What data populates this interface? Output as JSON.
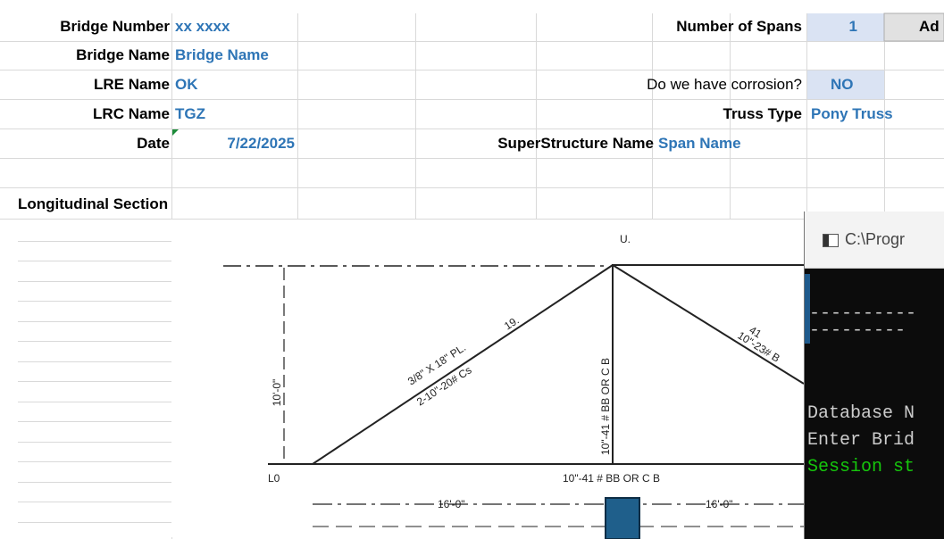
{
  "fields": [
    {
      "label": "Bridge Number",
      "value": "xx xxxx"
    },
    {
      "label": "Bridge Name",
      "value": "Bridge Name"
    },
    {
      "label": "LRE Name",
      "value": "OK"
    },
    {
      "label": "LRC Name",
      "value": "TGZ"
    },
    {
      "label": "Date",
      "value": "7/22/2025"
    },
    {
      "label": "Number of Spans",
      "value": "1"
    },
    {
      "label": "Do we have corrosion?",
      "value": "NO"
    },
    {
      "label": "Truss Type",
      "value": "Pony Truss"
    },
    {
      "label": "SuperStructure Name",
      "value": "Span Name"
    }
  ],
  "button": "Ad",
  "section_title": "Longitudinal Section",
  "drawing": {
    "labels": [
      "U.",
      "L0",
      "3/8\" X 18\" PL.",
      "2-10\"-20# Cs",
      "19.",
      "10'-0\"",
      "10\"-41 # BB OR C B",
      "10\"-41 # BB OR C B",
      "16'-0\"",
      "16'-0\"",
      "10\"-23# B",
      "41"
    ]
  },
  "console": {
    "title": "C:\\Progr",
    "lines": [
      "----------",
      "---------",
      "Database N",
      "Enter Brid",
      "Session st"
    ]
  }
}
